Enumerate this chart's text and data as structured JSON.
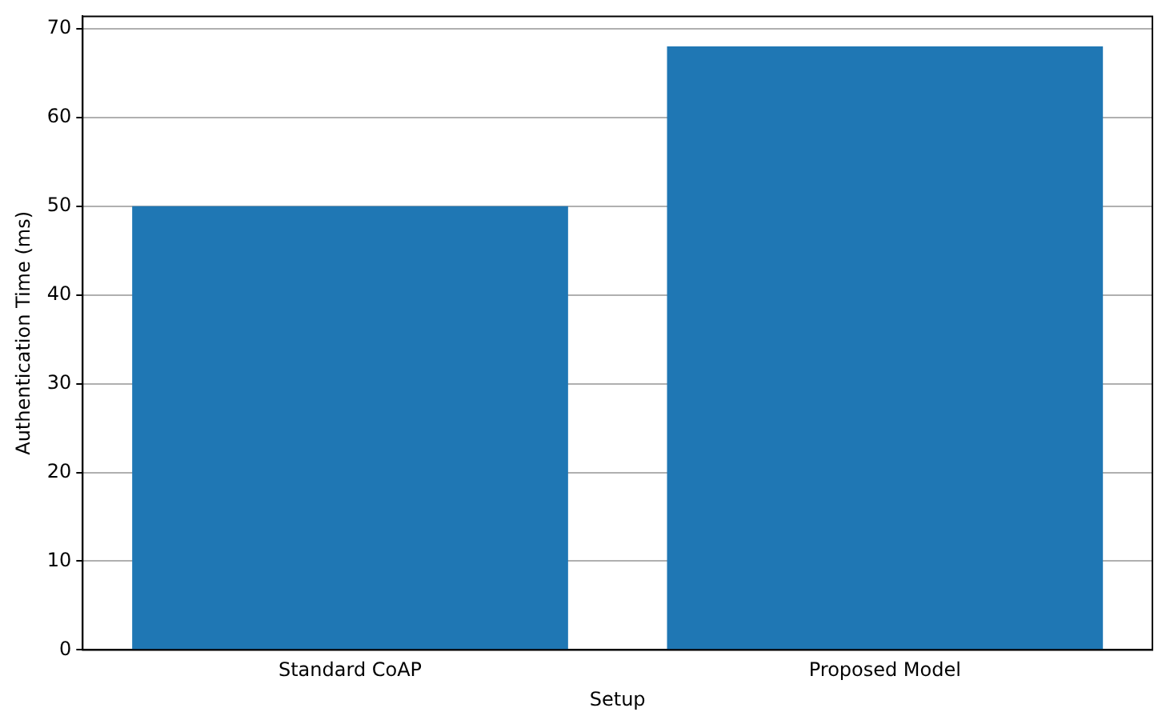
{
  "chart_data": {
    "type": "bar",
    "xlabel": "Setup",
    "ylabel": "Authentication Time (ms)",
    "categories": [
      "Standard CoAP",
      "Proposed Model"
    ],
    "values": [
      50,
      68
    ],
    "color": "#1f77b4",
    "ylim": [
      0,
      71.4
    ],
    "yticks": [
      0,
      10,
      20,
      30,
      40,
      50,
      60,
      70
    ],
    "grid": "y"
  }
}
